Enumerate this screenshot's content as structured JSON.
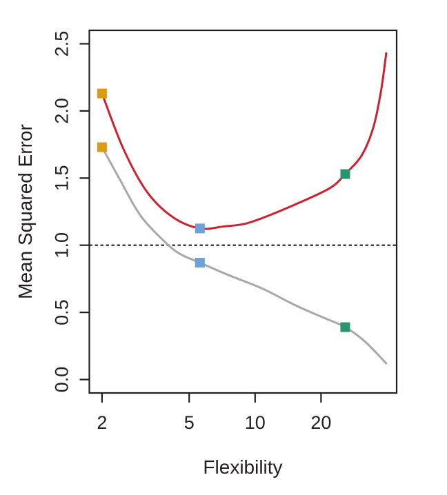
{
  "chart_data": {
    "type": "line",
    "title": "",
    "xlabel": "Flexibility",
    "ylabel": "Mean Squared Error",
    "x_scale": "log",
    "x_range": [
      1.75,
      44.3
    ],
    "y_range": [
      -0.1,
      2.6
    ],
    "grid": false,
    "legend": "none",
    "x_ticks": {
      "values": [
        2,
        5,
        10,
        20
      ],
      "labels": [
        "2",
        "5",
        "10",
        "20"
      ]
    },
    "y_ticks": {
      "values": [
        0,
        0.5,
        1,
        1.5,
        2,
        2.5
      ],
      "labels": [
        "0.0",
        "0.5",
        "1.0",
        "1.5",
        "2.0",
        "2.5"
      ]
    },
    "reference_line": {
      "y": 1.0,
      "style": "dashed",
      "color": "#231f20"
    },
    "series": [
      {
        "name": "red-curve",
        "color": "#ce2130",
        "points": [
          [
            2,
            2.13
          ],
          [
            2.5,
            1.72
          ],
          [
            3.2,
            1.4
          ],
          [
            4.2,
            1.21
          ],
          [
            5.6,
            1.125
          ],
          [
            7.2,
            1.14
          ],
          [
            9,
            1.16
          ],
          [
            11.5,
            1.22
          ],
          [
            16.6,
            1.33
          ],
          [
            22.2,
            1.43
          ],
          [
            25.8,
            1.53
          ],
          [
            30.7,
            1.67
          ],
          [
            34.7,
            1.88
          ],
          [
            37.6,
            2.15
          ],
          [
            39.7,
            2.43
          ]
        ]
      },
      {
        "name": "gray-curve",
        "color": "#a8a8a8",
        "points": [
          [
            2,
            1.73
          ],
          [
            2.43,
            1.48
          ],
          [
            3.0,
            1.22
          ],
          [
            3.9,
            1.02
          ],
          [
            4.6,
            0.93
          ],
          [
            5.6,
            0.87
          ],
          [
            7.5,
            0.78
          ],
          [
            10.7,
            0.68
          ],
          [
            15.4,
            0.55
          ],
          [
            20.6,
            0.46
          ],
          [
            25.8,
            0.39
          ],
          [
            31.9,
            0.28
          ],
          [
            39.7,
            0.12
          ]
        ]
      }
    ],
    "markers": [
      {
        "name": "orange-squares",
        "color": "#db9b12",
        "size": 14,
        "points": [
          [
            2,
            2.13
          ],
          [
            2,
            1.73
          ]
        ]
      },
      {
        "name": "blue-squares",
        "color": "#6ba2d8",
        "size": 14,
        "points": [
          [
            5.6,
            1.125
          ],
          [
            5.6,
            0.87
          ]
        ]
      },
      {
        "name": "green-squares",
        "color": "#28966a",
        "size": 14,
        "points": [
          [
            25.8,
            1.53
          ],
          [
            25.8,
            0.39
          ]
        ]
      }
    ]
  }
}
